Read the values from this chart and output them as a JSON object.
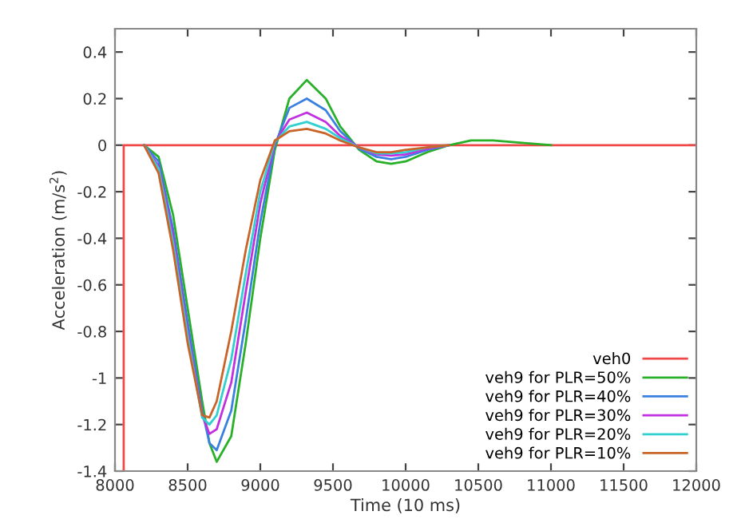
{
  "chart_data": {
    "type": "line",
    "xlabel": "Time (10 ms)",
    "ylabel": "Acceleration (m/s$^{2}$)",
    "xlim": [
      8000,
      12000
    ],
    "xticks": [
      8000,
      8500,
      9000,
      9500,
      10000,
      10500,
      11000,
      11500,
      12000
    ],
    "ylim": [
      -1.4,
      0.5
    ],
    "yticks": [
      -1.4,
      -1.2,
      -1,
      -0.8,
      -0.6,
      -0.4,
      -0.2,
      0,
      0.2,
      0.4
    ],
    "grid": false,
    "legend": "bottom right",
    "line_style": "solid",
    "marker": "none",
    "x": [
      8200,
      8300,
      8400,
      8500,
      8600,
      8650,
      8700,
      8800,
      8900,
      9000,
      9100,
      9200,
      9320,
      9450,
      9550,
      9680,
      9800,
      9900,
      10000,
      10150,
      10300
    ],
    "series": [
      {
        "name": "veh0",
        "color": "#f04848",
        "x": [
          8060,
          8060,
          12000
        ],
        "values": [
          -1.4,
          0,
          0
        ]
      },
      {
        "name": "veh9 for PLR=50%",
        "color": "#28b028",
        "x": [
          8200,
          8300,
          8400,
          8500,
          8600,
          8650,
          8700,
          8800,
          8900,
          9000,
          9100,
          9200,
          9320,
          9450,
          9550,
          9680,
          9800,
          9900,
          10000,
          10150,
          10300,
          10450,
          10600,
          10800,
          11000
        ],
        "values": [
          0,
          -0.05,
          -0.3,
          -0.7,
          -1.1,
          -1.28,
          -1.36,
          -1.25,
          -0.85,
          -0.4,
          -0.02,
          0.2,
          0.28,
          0.2,
          0.08,
          -0.02,
          -0.07,
          -0.08,
          -0.07,
          -0.03,
          0,
          0.02,
          0.02,
          0.01,
          0
        ]
      },
      {
        "name": "veh9 for PLR=40%",
        "color": "#3a80e0",
        "values": [
          0,
          -0.07,
          -0.36,
          -0.76,
          -1.14,
          -1.28,
          -1.31,
          -1.14,
          -0.75,
          -0.33,
          0,
          0.16,
          0.2,
          0.15,
          0.06,
          -0.015,
          -0.05,
          -0.06,
          -0.05,
          -0.02,
          0
        ]
      },
      {
        "name": "veh9 for PLR=30%",
        "color": "#c030e0",
        "values": [
          0,
          -0.09,
          -0.39,
          -0.8,
          -1.16,
          -1.24,
          -1.22,
          -1.02,
          -0.63,
          -0.25,
          0.01,
          0.11,
          0.14,
          0.1,
          0.04,
          -0.01,
          -0.04,
          -0.045,
          -0.04,
          -0.015,
          0
        ]
      },
      {
        "name": "veh9 for PLR=20%",
        "color": "#30d0d0",
        "values": [
          0,
          -0.1,
          -0.42,
          -0.82,
          -1.17,
          -1.2,
          -1.16,
          -0.92,
          -0.55,
          -0.2,
          0.015,
          0.08,
          0.1,
          0.07,
          0.03,
          -0.01,
          -0.035,
          -0.035,
          -0.03,
          -0.01,
          0
        ]
      },
      {
        "name": "veh9 for PLR=10%",
        "color": "#c86428",
        "values": [
          0,
          -0.12,
          -0.45,
          -0.85,
          -1.16,
          -1.17,
          -1.1,
          -0.8,
          -0.45,
          -0.15,
          0.02,
          0.06,
          0.07,
          0.05,
          0.02,
          -0.01,
          -0.03,
          -0.03,
          -0.02,
          -0.01,
          0
        ]
      }
    ]
  }
}
